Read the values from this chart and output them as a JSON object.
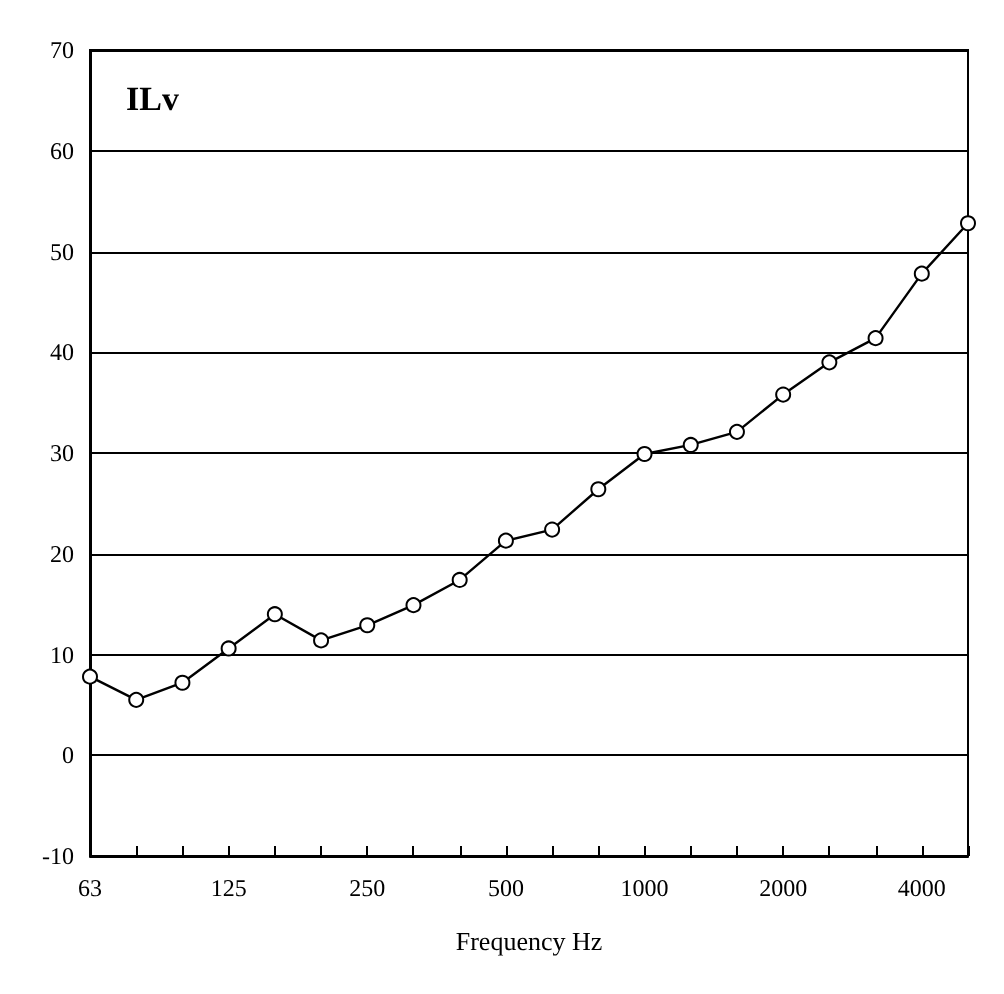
{
  "chart_data": {
    "type": "line",
    "title": "ILv",
    "xlabel": "Frequency Hz",
    "categories": [
      "63",
      null,
      null,
      "125",
      null,
      null,
      "250",
      null,
      null,
      "500",
      null,
      null,
      "1000",
      null,
      null,
      "2000",
      null,
      null,
      "4000",
      null
    ],
    "series": [
      {
        "color": "#000000",
        "values": [
          7.8,
          5.5,
          7.2,
          10.6,
          14,
          11.4,
          12.9,
          14.9,
          17.4,
          21.3,
          22.4,
          26.4,
          29.9,
          30.8,
          32.1,
          35.8,
          39.0,
          41.4,
          47.8,
          52.8
        ]
      }
    ],
    "ylim": [
      -10,
      70
    ],
    "yticks": [
      -10,
      0,
      10,
      20,
      30,
      40,
      50,
      60,
      70
    ],
    "grid": "y",
    "marker": "circle",
    "line_style": "solid"
  }
}
